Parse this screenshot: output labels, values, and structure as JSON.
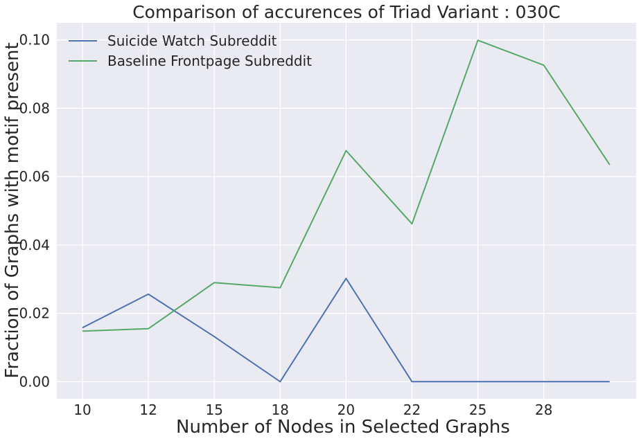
{
  "chart_data": {
    "type": "line",
    "title": "Comparison of accurences of Triad Variant  : 030C",
    "xlabel": "Number of Nodes in Selected Graphs",
    "ylabel": "Fraction of Graphs with motif present",
    "x_tick_labels": [
      "10",
      "12",
      "15",
      "18",
      "20",
      "22",
      "25",
      "28",
      ""
    ],
    "ylim": [
      -0.005,
      0.105
    ],
    "y_ticks": [
      0.0,
      0.02,
      0.04,
      0.06,
      0.08,
      0.1
    ],
    "y_tick_labels": [
      "0.00",
      "0.02",
      "0.04",
      "0.06",
      "0.08",
      "0.10"
    ],
    "grid": true,
    "legend_position": "top-left",
    "series": [
      {
        "name": "Suicide Watch Subreddit",
        "color": "#4c72b0",
        "values": [
          0.0158,
          0.0256,
          0.0132,
          0.0,
          0.0302,
          0.0,
          0.0,
          0.0,
          0.0
        ]
      },
      {
        "name": "Baseline Frontpage Subreddit",
        "color": "#55a868",
        "values": [
          0.0148,
          0.0155,
          0.029,
          0.0275,
          0.0676,
          0.0462,
          0.0999,
          0.0926,
          0.0635
        ]
      }
    ]
  }
}
